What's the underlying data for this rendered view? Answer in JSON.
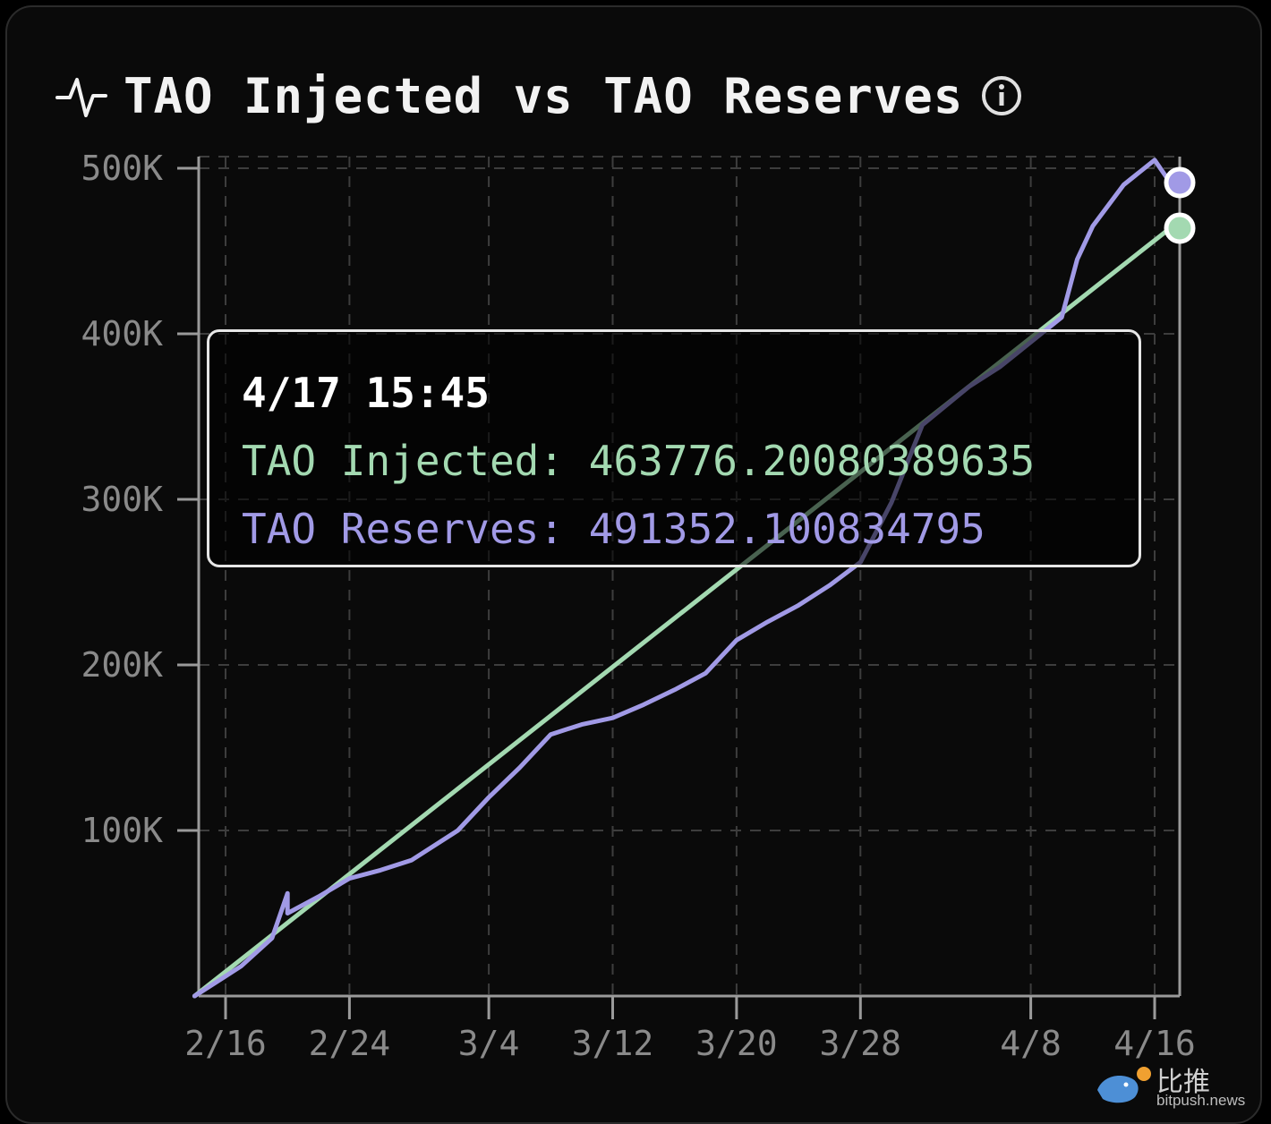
{
  "header": {
    "title": "TAO Injected vs TAO Reserves",
    "pulse_icon": "activity-pulse-icon",
    "info_icon": "info-circle-icon"
  },
  "tooltip": {
    "time": "4/17 15:45",
    "injected_label": "TAO Injected:",
    "injected_value": "463776.20080389635",
    "reserves_label": "TAO Reserves:",
    "reserves_value": "491352.100834795"
  },
  "watermark": {
    "name": "比推",
    "url": "bitpush.news",
    "icon": "bird-logo-icon"
  },
  "colors": {
    "injected": "#a3d9b1",
    "reserves": "#a19ae6",
    "background": "#0a0a0a",
    "grid": "#3d3d3d",
    "axis_text": "#8a8a8a"
  },
  "chart_data": {
    "type": "line",
    "title": "TAO Injected vs TAO Reserves",
    "xlabel": "",
    "ylabel": "",
    "x_ticks": [
      "2/16",
      "2/24",
      "3/4",
      "3/12",
      "3/20",
      "3/28",
      "4/8",
      "4/16"
    ],
    "y_ticks": [
      "100K",
      "200K",
      "300K",
      "400K",
      "500K"
    ],
    "ylim": [
      0,
      500000
    ],
    "xlim": [
      "2/14",
      "4/17"
    ],
    "grid": true,
    "series": [
      {
        "name": "TAO Injected",
        "color": "#a3d9b1",
        "points": [
          [
            "2/14",
            0
          ],
          [
            "4/17",
            463776
          ]
        ]
      },
      {
        "name": "TAO Reserves",
        "color": "#a19ae6",
        "points": [
          [
            "2/14",
            0
          ],
          [
            "2/17",
            18000
          ],
          [
            "2/19",
            35000
          ],
          [
            "2/20",
            62000
          ],
          [
            "2/20",
            50000
          ],
          [
            "2/22",
            60000
          ],
          [
            "2/24",
            71000
          ],
          [
            "2/26",
            76000
          ],
          [
            "2/28",
            82000
          ],
          [
            "3/2",
            100000
          ],
          [
            "3/4",
            120000
          ],
          [
            "3/6",
            138000
          ],
          [
            "3/8",
            158000
          ],
          [
            "3/10",
            164000
          ],
          [
            "3/12",
            168000
          ],
          [
            "3/14",
            176000
          ],
          [
            "3/16",
            185000
          ],
          [
            "3/18",
            195000
          ],
          [
            "3/20",
            215000
          ],
          [
            "3/22",
            226000
          ],
          [
            "3/24",
            236000
          ],
          [
            "3/26",
            248000
          ],
          [
            "3/28",
            262000
          ],
          [
            "3/30",
            298000
          ],
          [
            "4/1",
            345000
          ],
          [
            "4/4",
            368000
          ],
          [
            "4/6",
            380000
          ],
          [
            "4/8",
            395000
          ],
          [
            "4/10",
            410000
          ],
          [
            "4/11",
            445000
          ],
          [
            "4/12",
            465000
          ],
          [
            "4/14",
            490000
          ],
          [
            "4/16",
            505000
          ],
          [
            "4/17",
            491352
          ]
        ]
      }
    ],
    "end_markers": [
      {
        "series": "TAO Reserves",
        "value": 491352
      },
      {
        "series": "TAO Injected",
        "value": 463776
      }
    ]
  }
}
